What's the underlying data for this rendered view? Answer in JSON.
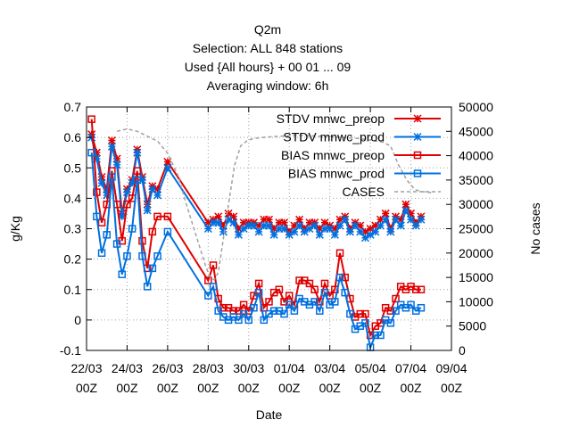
{
  "chart_data": {
    "type": "line",
    "title_lines": [
      "Q2m",
      "Selection: ALL    848 stations",
      "Used {All hours} + 00 01 ... 09",
      "Averaging window:  6h"
    ],
    "xlabel": "Date",
    "ylabel": "g/Kg",
    "y2label": "No cases",
    "x_ticks": [
      {
        "day": 0,
        "line1": "22/03",
        "line2": "00Z"
      },
      {
        "day": 2,
        "line1": "24/03",
        "line2": "00Z"
      },
      {
        "day": 4,
        "line1": "26/03",
        "line2": "00Z"
      },
      {
        "day": 6,
        "line1": "28/03",
        "line2": "00Z"
      },
      {
        "day": 8,
        "line1": "30/03",
        "line2": "00Z"
      },
      {
        "day": 10,
        "line1": "01/04",
        "line2": "00Z"
      },
      {
        "day": 12,
        "line1": "03/04",
        "line2": "00Z"
      },
      {
        "day": 14,
        "line1": "05/04",
        "line2": "00Z"
      },
      {
        "day": 16,
        "line1": "07/04",
        "line2": "00Z"
      },
      {
        "day": 18,
        "line1": "09/04",
        "line2": "00Z"
      }
    ],
    "xlim": [
      0,
      18
    ],
    "ylim": [
      -0.1,
      0.7
    ],
    "y_ticks": [
      "-0.1",
      "0",
      "0.1",
      "0.2",
      "0.3",
      "0.4",
      "0.5",
      "0.6",
      "0.7"
    ],
    "y2lim": [
      0,
      50000
    ],
    "y2_ticks": [
      "0",
      "5000",
      "10000",
      "15000",
      "20000",
      "25000",
      "30000",
      "35000",
      "40000",
      "45000",
      "50000"
    ],
    "grid": true,
    "legend_position": "top-right",
    "series": [
      {
        "name": "STDV mnwc_preop",
        "color": "#e00000",
        "marker": "star",
        "axis": "y1",
        "x": [
          0.25,
          0.5,
          0.75,
          1.0,
          1.25,
          1.5,
          1.75,
          2.0,
          2.25,
          2.5,
          2.75,
          3.0,
          3.25,
          3.5,
          4.0,
          6.0,
          6.25,
          6.5,
          6.75,
          7.0,
          7.25,
          7.5,
          7.75,
          8.0,
          8.25,
          8.5,
          8.75,
          9.0,
          9.25,
          9.5,
          9.75,
          10.0,
          10.25,
          10.5,
          10.75,
          11.0,
          11.25,
          11.5,
          11.75,
          12.0,
          12.25,
          12.5,
          12.75,
          13.0,
          13.25,
          13.5,
          13.75,
          14.0,
          14.25,
          14.5,
          14.75,
          15.0,
          15.25,
          15.5,
          15.75,
          16.0,
          16.25,
          16.5
        ],
        "y": [
          0.61,
          0.55,
          0.47,
          0.43,
          0.59,
          0.53,
          0.35,
          0.43,
          0.46,
          0.56,
          0.47,
          0.38,
          0.44,
          0.43,
          0.52,
          0.32,
          0.33,
          0.34,
          0.31,
          0.35,
          0.34,
          0.3,
          0.32,
          0.32,
          0.32,
          0.31,
          0.33,
          0.33,
          0.3,
          0.32,
          0.32,
          0.29,
          0.31,
          0.33,
          0.3,
          0.32,
          0.32,
          0.3,
          0.32,
          0.31,
          0.3,
          0.33,
          0.34,
          0.3,
          0.32,
          0.31,
          0.29,
          0.3,
          0.31,
          0.33,
          0.35,
          0.3,
          0.34,
          0.33,
          0.38,
          0.35,
          0.32,
          0.34
        ]
      },
      {
        "name": "STDV mnwc_prod",
        "color": "#0070e0",
        "marker": "star",
        "axis": "y1",
        "x": [
          0.25,
          0.5,
          0.75,
          1.0,
          1.25,
          1.5,
          1.75,
          2.0,
          2.25,
          2.5,
          2.75,
          3.0,
          3.25,
          3.5,
          4.0,
          6.0,
          6.25,
          6.5,
          6.75,
          7.0,
          7.25,
          7.5,
          7.75,
          8.0,
          8.25,
          8.5,
          8.75,
          9.0,
          9.25,
          9.5,
          9.75,
          10.0,
          10.25,
          10.5,
          10.75,
          11.0,
          11.25,
          11.5,
          11.75,
          12.0,
          12.25,
          12.5,
          12.75,
          13.0,
          13.25,
          13.5,
          13.75,
          14.0,
          14.25,
          14.5,
          14.75,
          15.0,
          15.25,
          15.5,
          15.75,
          16.0,
          16.25,
          16.5
        ],
        "y": [
          0.6,
          0.53,
          0.45,
          0.41,
          0.57,
          0.51,
          0.34,
          0.42,
          0.45,
          0.55,
          0.46,
          0.36,
          0.43,
          0.41,
          0.5,
          0.3,
          0.32,
          0.32,
          0.29,
          0.33,
          0.32,
          0.28,
          0.3,
          0.31,
          0.31,
          0.29,
          0.31,
          0.31,
          0.28,
          0.3,
          0.3,
          0.28,
          0.29,
          0.31,
          0.29,
          0.3,
          0.31,
          0.28,
          0.3,
          0.3,
          0.28,
          0.31,
          0.33,
          0.29,
          0.31,
          0.29,
          0.27,
          0.28,
          0.29,
          0.31,
          0.33,
          0.29,
          0.33,
          0.31,
          0.36,
          0.33,
          0.31,
          0.33
        ]
      },
      {
        "name": "BIAS mnwc_preop",
        "color": "#e00000",
        "marker": "square",
        "axis": "y1",
        "x": [
          0.25,
          0.5,
          0.75,
          1.0,
          1.25,
          1.5,
          1.75,
          2.0,
          2.25,
          2.5,
          2.75,
          3.0,
          3.25,
          3.5,
          4.0,
          6.0,
          6.25,
          6.5,
          6.75,
          7.0,
          7.25,
          7.5,
          7.75,
          8.0,
          8.25,
          8.5,
          8.75,
          9.0,
          9.25,
          9.5,
          9.75,
          10.0,
          10.25,
          10.5,
          10.75,
          11.0,
          11.25,
          11.5,
          11.75,
          12.0,
          12.25,
          12.5,
          12.75,
          13.0,
          13.25,
          13.5,
          13.75,
          14.0,
          14.25,
          14.5,
          14.75,
          15.0,
          15.25,
          15.5,
          15.75,
          16.0,
          16.25,
          16.5
        ],
        "y": [
          0.66,
          0.42,
          0.32,
          0.38,
          0.49,
          0.38,
          0.26,
          0.38,
          0.4,
          0.49,
          0.26,
          0.17,
          0.29,
          0.34,
          0.34,
          0.13,
          0.18,
          0.07,
          0.04,
          0.04,
          0.03,
          0.03,
          0.05,
          0.03,
          0.08,
          0.12,
          0.04,
          0.06,
          0.09,
          0.1,
          0.06,
          0.08,
          0.05,
          0.13,
          0.13,
          0.12,
          0.1,
          0.06,
          0.12,
          0.08,
          0.1,
          0.22,
          0.14,
          0.07,
          0.01,
          0.02,
          0.02,
          -0.05,
          -0.02,
          -0.01,
          0.04,
          0.03,
          0.07,
          0.11,
          0.1,
          0.11,
          0.1,
          0.1
        ]
      },
      {
        "name": "BIAS mnwc_prod",
        "color": "#0070e0",
        "marker": "square",
        "axis": "y1",
        "x": [
          0.25,
          0.5,
          0.75,
          1.0,
          1.25,
          1.5,
          1.75,
          2.0,
          2.25,
          2.5,
          2.75,
          3.0,
          3.25,
          3.5,
          4.0,
          6.0,
          6.25,
          6.5,
          6.75,
          7.0,
          7.25,
          7.5,
          7.75,
          8.0,
          8.25,
          8.5,
          8.75,
          9.0,
          9.25,
          9.5,
          9.75,
          10.0,
          10.25,
          10.5,
          10.75,
          11.0,
          11.25,
          11.5,
          11.75,
          12.0,
          12.25,
          12.5,
          12.75,
          13.0,
          13.25,
          13.5,
          13.75,
          14.0,
          14.25,
          14.5,
          14.75,
          15.0,
          15.25,
          15.5,
          15.75,
          16.0,
          16.25,
          16.5
        ],
        "y": [
          0.55,
          0.34,
          0.22,
          0.28,
          0.47,
          0.25,
          0.15,
          0.21,
          0.3,
          0.46,
          0.21,
          0.11,
          0.17,
          0.21,
          0.29,
          0.08,
          0.11,
          0.03,
          0.01,
          0.0,
          0.01,
          0.0,
          0.02,
          0.0,
          0.04,
          0.09,
          0.0,
          0.02,
          0.03,
          0.03,
          0.02,
          0.05,
          0.03,
          0.07,
          0.06,
          0.05,
          0.06,
          0.03,
          0.09,
          0.05,
          0.06,
          0.14,
          0.09,
          0.02,
          -0.03,
          -0.02,
          -0.01,
          -0.09,
          -0.05,
          -0.05,
          0.0,
          -0.01,
          0.03,
          0.05,
          0.04,
          0.05,
          0.03,
          0.04
        ]
      },
      {
        "name": "CASES",
        "color": "#a0a0a0",
        "marker": "none",
        "axis": "y2",
        "x": [
          1.5,
          2.0,
          2.5,
          3.0,
          3.5,
          4.0,
          4.5,
          5.0,
          5.3,
          5.6,
          5.9,
          6.1,
          6.3,
          6.5,
          7.0,
          7.3,
          7.6,
          7.9,
          8.2,
          8.8,
          9.5,
          10.5,
          11.5,
          12.5,
          13.5,
          14.0,
          14.3,
          14.6,
          15.0,
          15.4,
          15.8,
          16.2,
          16.6,
          17.0
        ],
        "y": [
          45000,
          45500,
          45000,
          44000,
          43000,
          40500,
          36000,
          29000,
          25000,
          21000,
          17000,
          15000,
          14500,
          16000,
          30000,
          38000,
          42000,
          43000,
          43500,
          43800,
          44000,
          44200,
          44000,
          43800,
          43500,
          43200,
          43000,
          42800,
          42000,
          38000,
          35000,
          33000,
          32600,
          32400
        ]
      }
    ]
  }
}
